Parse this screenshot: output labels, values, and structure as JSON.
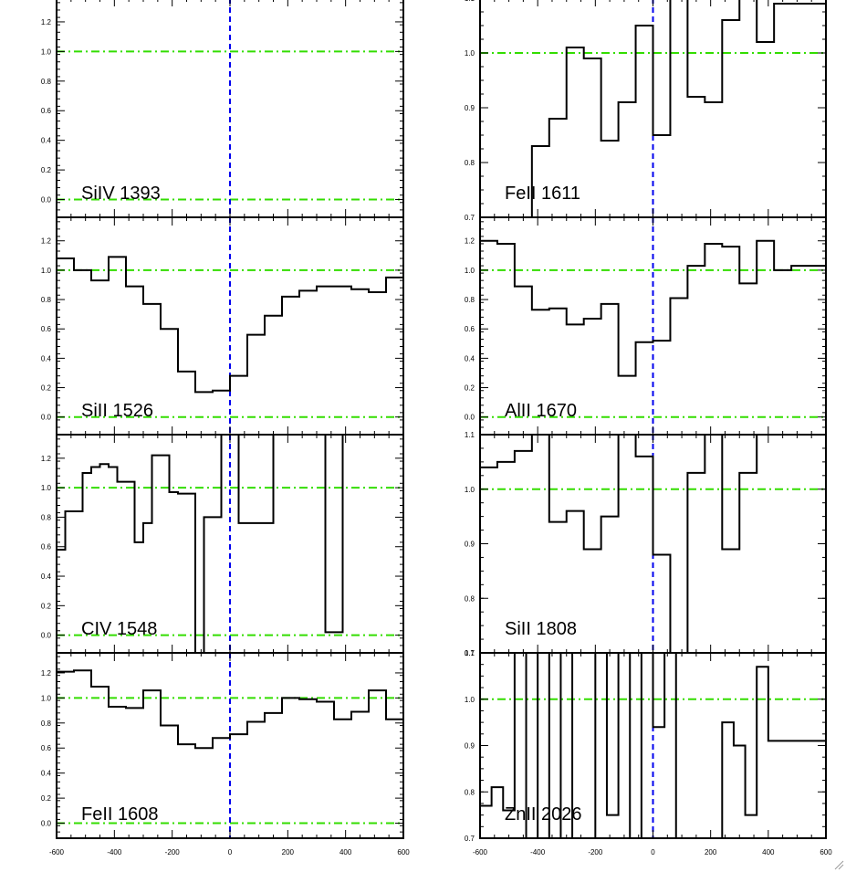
{
  "figure": {
    "columns": [
      {
        "panels_top_to_bottom": [
          "SiIV 1393",
          "SiII 1526",
          "CIV 1548",
          "FeII 1608"
        ]
      },
      {
        "panels_top_to_bottom": [
          "FeII 1611",
          "AlII 1670",
          "SiII 1808",
          "ZnII 2026"
        ]
      }
    ],
    "x_tick_labels": [
      "-600",
      "-400",
      "-200",
      "0",
      "200",
      "400",
      "600"
    ],
    "colors": {
      "spectrum": "#000000",
      "continuum_line": "#33dd00",
      "zero_velocity_line": "#0000ee",
      "frame": "#000000"
    },
    "icons": {
      "corner": "resize-grip-icon"
    }
  },
  "chart_data": [
    {
      "type": "line",
      "style": "histogram step",
      "label": "SiIV 1393",
      "xlim": [
        -600,
        600
      ],
      "ylim": [
        -0.12,
        1.36
      ],
      "yticks": [
        0.0,
        0.2,
        0.4,
        0.6,
        0.8,
        1.0,
        1.2
      ],
      "ytick_labels": [
        "0.0",
        "0.2",
        "0.4",
        "0.6",
        "0.8",
        "1.0",
        "1.2"
      ],
      "reference_lines": {
        "horizontal": [
          1.0,
          0.0
        ],
        "vertical": [
          0
        ]
      },
      "x": [],
      "y": []
    },
    {
      "type": "line",
      "style": "histogram step",
      "label": "SiII 1526",
      "xlim": [
        -600,
        600
      ],
      "ylim": [
        -0.12,
        1.36
      ],
      "yticks": [
        0.0,
        0.2,
        0.4,
        0.6,
        0.8,
        1.0,
        1.2
      ],
      "ytick_labels": [
        "0.0",
        "0.2",
        "0.4",
        "0.6",
        "0.8",
        "1.0",
        "1.2"
      ],
      "reference_lines": {
        "horizontal": [
          1.0,
          0.0
        ],
        "vertical": [
          0
        ]
      },
      "x": [
        -600,
        -540,
        -480,
        -420,
        -360,
        -300,
        -240,
        -180,
        -120,
        -60,
        0,
        60,
        120,
        180,
        240,
        300,
        360,
        420,
        480,
        540,
        600
      ],
      "y": [
        1.08,
        1.0,
        0.93,
        1.09,
        0.89,
        0.77,
        0.6,
        0.31,
        0.17,
        0.18,
        0.28,
        0.56,
        0.69,
        0.82,
        0.86,
        0.89,
        0.89,
        0.87,
        0.85,
        0.95,
        0.93
      ]
    },
    {
      "type": "line",
      "style": "histogram step",
      "label": "CIV 1548",
      "xlim": [
        -600,
        600
      ],
      "ylim": [
        -0.12,
        1.36
      ],
      "yticks": [
        0.0,
        0.2,
        0.4,
        0.6,
        0.8,
        1.0,
        1.2
      ],
      "ytick_labels": [
        "0.0",
        "0.2",
        "0.4",
        "0.6",
        "0.8",
        "1.0",
        "1.2"
      ],
      "reference_lines": {
        "horizontal": [
          1.0,
          0.0
        ],
        "vertical": [
          0
        ]
      },
      "x": [
        -600,
        -570,
        -540,
        -510,
        -480,
        -450,
        -420,
        -390,
        -360,
        -330,
        -300,
        -270,
        -240,
        -210,
        -180,
        -150,
        -120,
        -90,
        -60,
        -30,
        0,
        30,
        60,
        90,
        120,
        150,
        180,
        210,
        240,
        270,
        300,
        330,
        360,
        390,
        420,
        450,
        480,
        510,
        540,
        570,
        600
      ],
      "y": [
        0.58,
        0.84,
        0.84,
        1.1,
        1.14,
        1.16,
        1.14,
        1.04,
        1.04,
        0.63,
        0.76,
        1.22,
        1.22,
        0.97,
        0.96,
        0.96,
        -0.12,
        0.8,
        0.8,
        1.38,
        1.38,
        0.76,
        0.76,
        0.76,
        0.76,
        1.38,
        1.38,
        1.38,
        1.38,
        1.38,
        1.38,
        0.02,
        0.02,
        1.38,
        1.38,
        1.38,
        1.38,
        1.38,
        1.38,
        1.38,
        1.38
      ]
    },
    {
      "type": "line",
      "style": "histogram step",
      "label": "FeII 1608",
      "xlim": [
        -600,
        600
      ],
      "ylim": [
        -0.12,
        1.36
      ],
      "yticks": [
        0.0,
        0.2,
        0.4,
        0.6,
        0.8,
        1.0,
        1.2
      ],
      "ytick_labels": [
        "0.0",
        "0.2",
        "0.4",
        "0.6",
        "0.8",
        "1.0",
        "1.2"
      ],
      "reference_lines": {
        "horizontal": [
          1.0,
          0.0
        ],
        "vertical": [
          0
        ]
      },
      "x": [
        -600,
        -540,
        -480,
        -420,
        -360,
        -300,
        -240,
        -180,
        -120,
        -60,
        0,
        60,
        120,
        180,
        240,
        300,
        360,
        420,
        480,
        540,
        600
      ],
      "y": [
        1.21,
        1.22,
        1.09,
        0.93,
        0.92,
        1.06,
        0.78,
        0.63,
        0.6,
        0.68,
        0.71,
        0.81,
        0.88,
        1.0,
        0.99,
        0.97,
        0.83,
        0.89,
        1.06,
        0.83,
        0.83
      ]
    },
    {
      "type": "line",
      "style": "histogram step",
      "label": "FeII 1611",
      "xlim": [
        -600,
        600
      ],
      "ylim": [
        0.7,
        1.1
      ],
      "yticks": [
        0.7,
        0.8,
        0.9,
        1.0,
        1.1
      ],
      "ytick_labels": [
        "0.7",
        "0.8",
        "0.9",
        "1.0",
        "1.1"
      ],
      "reference_lines": {
        "horizontal": [
          1.0
        ],
        "vertical": [
          0
        ]
      },
      "x": [
        -450,
        -420,
        -390,
        -360,
        -330,
        -300,
        -270,
        -240,
        -210,
        -180,
        -150,
        -120,
        -90,
        -60,
        -30,
        0,
        30,
        60,
        90,
        120,
        150,
        180,
        210,
        240,
        270,
        300,
        330,
        360,
        390,
        420,
        450,
        480,
        510,
        540,
        570,
        600
      ],
      "y": [
        0.7,
        0.83,
        0.83,
        0.88,
        0.88,
        1.01,
        1.01,
        0.99,
        0.99,
        0.84,
        0.84,
        0.91,
        0.91,
        1.05,
        1.05,
        0.85,
        0.85,
        1.12,
        1.12,
        0.92,
        0.92,
        0.91,
        0.91,
        1.06,
        1.06,
        1.12,
        1.12,
        1.02,
        1.02,
        1.09,
        1.09,
        1.09,
        1.09,
        1.09,
        1.09,
        1.09
      ]
    },
    {
      "type": "line",
      "style": "histogram step",
      "label": "AlII 1670",
      "xlim": [
        -600,
        600
      ],
      "ylim": [
        -0.12,
        1.36
      ],
      "yticks": [
        0.0,
        0.2,
        0.4,
        0.6,
        0.8,
        1.0,
        1.2
      ],
      "ytick_labels": [
        "0.0",
        "0.2",
        "0.4",
        "0.6",
        "0.8",
        "1.0",
        "1.2"
      ],
      "reference_lines": {
        "horizontal": [
          1.0,
          0.0
        ],
        "vertical": [
          0
        ]
      },
      "x": [
        -600,
        -540,
        -480,
        -420,
        -360,
        -300,
        -240,
        -180,
        -120,
        -60,
        0,
        60,
        120,
        180,
        240,
        300,
        360,
        420,
        480,
        540,
        600
      ],
      "y": [
        1.2,
        1.18,
        0.89,
        0.73,
        0.74,
        0.63,
        0.67,
        0.77,
        0.28,
        0.51,
        0.52,
        0.81,
        1.03,
        1.18,
        1.16,
        0.91,
        1.2,
        1.0,
        1.03,
        1.03,
        1.03
      ]
    },
    {
      "type": "line",
      "style": "histogram step",
      "label": "SiII 1808",
      "xlim": [
        -600,
        600
      ],
      "ylim": [
        0.7,
        1.1
      ],
      "yticks": [
        0.7,
        0.8,
        0.9,
        1.0,
        1.1
      ],
      "ytick_labels": [
        "0.7",
        "0.8",
        "0.9",
        "1.0",
        "1.1"
      ],
      "reference_lines": {
        "horizontal": [
          1.0
        ],
        "vertical": [
          0
        ]
      },
      "x": [
        -600,
        -570,
        -540,
        -510,
        -480,
        -450,
        -420,
        -390,
        -360,
        -330,
        -300,
        -270,
        -240,
        -210,
        -180,
        -150,
        -120,
        -90,
        -60,
        -30,
        0,
        30,
        60,
        90,
        120,
        150,
        180,
        210,
        240,
        270,
        300,
        330,
        360,
        390,
        420,
        450,
        480,
        510,
        540,
        570,
        600
      ],
      "y": [
        1.04,
        1.04,
        1.05,
        1.05,
        1.07,
        1.07,
        1.12,
        1.12,
        0.94,
        0.94,
        0.96,
        0.96,
        0.89,
        0.89,
        0.95,
        0.95,
        1.12,
        1.12,
        1.06,
        1.06,
        0.88,
        0.88,
        0.7,
        0.7,
        1.03,
        1.03,
        1.12,
        1.12,
        0.89,
        0.89,
        1.03,
        1.03,
        1.12,
        1.12,
        1.12,
        1.12,
        1.12,
        1.12,
        1.12,
        1.12,
        1.12
      ]
    },
    {
      "type": "line",
      "style": "histogram step",
      "label": "ZnII 2026",
      "xlim": [
        -600,
        600
      ],
      "ylim": [
        0.7,
        1.1
      ],
      "yticks": [
        0.7,
        0.8,
        0.9,
        1.0,
        1.1
      ],
      "ytick_labels": [
        "0.7",
        "0.8",
        "0.9",
        "1.0",
        "1.1"
      ],
      "reference_lines": {
        "horizontal": [
          1.0
        ],
        "vertical": [
          0
        ]
      },
      "x": [
        -600,
        -560,
        -520,
        -480,
        -440,
        -400,
        -360,
        -320,
        -280,
        -240,
        -200,
        -160,
        -120,
        -80,
        -40,
        0,
        40,
        80,
        120,
        160,
        200,
        240,
        280,
        320,
        360,
        400,
        440,
        480,
        520,
        560,
        600
      ],
      "y": [
        0.77,
        0.81,
        0.76,
        1.12,
        0.7,
        1.12,
        0.7,
        1.12,
        0.7,
        0.7,
        1.12,
        0.75,
        1.12,
        0.7,
        1.12,
        0.94,
        1.12,
        0.7,
        0.7,
        0.7,
        0.7,
        0.95,
        0.9,
        0.75,
        1.07,
        0.91,
        0.91,
        0.91,
        0.91,
        0.91,
        0.91
      ]
    }
  ]
}
